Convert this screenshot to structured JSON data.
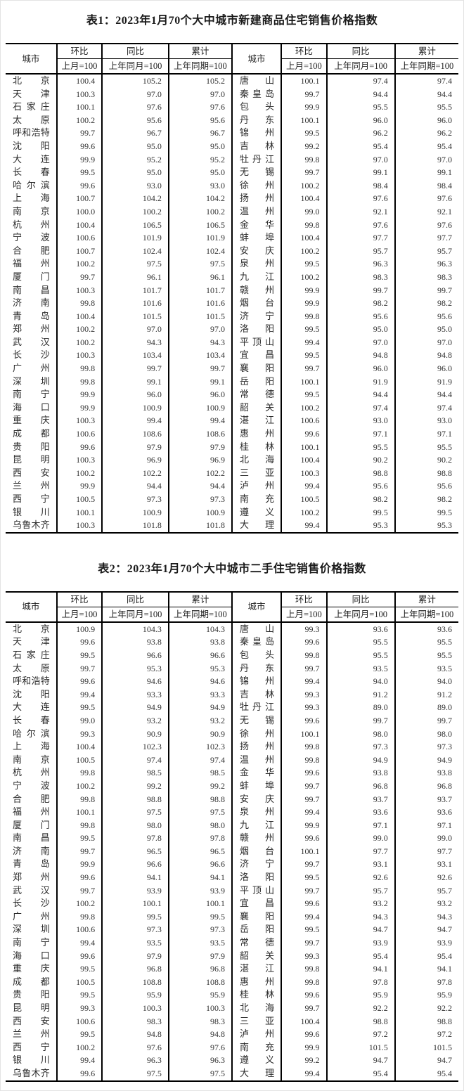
{
  "colors": {
    "table_border": "#000000",
    "text": "#333333",
    "title_text": "#1a1a1a"
  },
  "headers": {
    "city": "城市",
    "mom": "环比",
    "yoy": "同比",
    "cum": "累计",
    "mom_base": "上月=100",
    "yoy_base": "上年同月=100",
    "cum_base": "上年同期=100"
  },
  "tables": [
    {
      "title": "表1：2023年1月70个大中城市新建商品住宅销售价格指数",
      "left": [
        {
          "city": "北京",
          "mom": "100.4",
          "yoy": "105.2",
          "cum": "105.2"
        },
        {
          "city": "天津",
          "mom": "100.3",
          "yoy": "97.0",
          "cum": "97.0"
        },
        {
          "city": "石家庄",
          "mom": "100.1",
          "yoy": "97.6",
          "cum": "97.6"
        },
        {
          "city": "太原",
          "mom": "100.2",
          "yoy": "95.6",
          "cum": "95.6"
        },
        {
          "city": "呼和浩特",
          "mom": "99.7",
          "yoy": "96.7",
          "cum": "96.7"
        },
        {
          "city": "沈阳",
          "mom": "99.6",
          "yoy": "95.0",
          "cum": "95.0"
        },
        {
          "city": "大连",
          "mom": "99.9",
          "yoy": "95.2",
          "cum": "95.2"
        },
        {
          "city": "长春",
          "mom": "99.5",
          "yoy": "95.0",
          "cum": "95.0"
        },
        {
          "city": "哈尔滨",
          "mom": "99.6",
          "yoy": "93.0",
          "cum": "93.0"
        },
        {
          "city": "上海",
          "mom": "100.7",
          "yoy": "104.2",
          "cum": "104.2"
        },
        {
          "city": "南京",
          "mom": "100.0",
          "yoy": "100.2",
          "cum": "100.2"
        },
        {
          "city": "杭州",
          "mom": "100.4",
          "yoy": "106.5",
          "cum": "106.5"
        },
        {
          "city": "宁波",
          "mom": "100.6",
          "yoy": "101.9",
          "cum": "101.9"
        },
        {
          "city": "合肥",
          "mom": "100.7",
          "yoy": "102.4",
          "cum": "102.4"
        },
        {
          "city": "福州",
          "mom": "100.2",
          "yoy": "97.5",
          "cum": "97.5"
        },
        {
          "city": "厦门",
          "mom": "99.7",
          "yoy": "96.1",
          "cum": "96.1"
        },
        {
          "city": "南昌",
          "mom": "100.3",
          "yoy": "101.7",
          "cum": "101.7"
        },
        {
          "city": "济南",
          "mom": "99.8",
          "yoy": "101.6",
          "cum": "101.6"
        },
        {
          "city": "青岛",
          "mom": "100.4",
          "yoy": "101.5",
          "cum": "101.5"
        },
        {
          "city": "郑州",
          "mom": "100.2",
          "yoy": "97.0",
          "cum": "97.0"
        },
        {
          "city": "武汉",
          "mom": "100.2",
          "yoy": "94.3",
          "cum": "94.3"
        },
        {
          "city": "长沙",
          "mom": "100.3",
          "yoy": "103.4",
          "cum": "103.4"
        },
        {
          "city": "广州",
          "mom": "99.8",
          "yoy": "99.7",
          "cum": "99.7"
        },
        {
          "city": "深圳",
          "mom": "99.8",
          "yoy": "99.1",
          "cum": "99.1"
        },
        {
          "city": "南宁",
          "mom": "99.9",
          "yoy": "96.0",
          "cum": "96.0"
        },
        {
          "city": "海口",
          "mom": "99.9",
          "yoy": "100.9",
          "cum": "100.9"
        },
        {
          "city": "重庆",
          "mom": "100.3",
          "yoy": "99.4",
          "cum": "99.4"
        },
        {
          "city": "成都",
          "mom": "100.6",
          "yoy": "108.6",
          "cum": "108.6"
        },
        {
          "city": "贵阳",
          "mom": "99.6",
          "yoy": "97.9",
          "cum": "97.9"
        },
        {
          "city": "昆明",
          "mom": "100.3",
          "yoy": "96.9",
          "cum": "96.9"
        },
        {
          "city": "西安",
          "mom": "100.2",
          "yoy": "102.2",
          "cum": "102.2"
        },
        {
          "city": "兰州",
          "mom": "99.9",
          "yoy": "94.4",
          "cum": "94.4"
        },
        {
          "city": "西宁",
          "mom": "100.5",
          "yoy": "97.3",
          "cum": "97.3"
        },
        {
          "city": "银川",
          "mom": "100.1",
          "yoy": "100.9",
          "cum": "100.9"
        },
        {
          "city": "乌鲁木齐",
          "mom": "100.3",
          "yoy": "101.8",
          "cum": "101.8"
        }
      ],
      "right": [
        {
          "city": "唐山",
          "mom": "100.1",
          "yoy": "97.4",
          "cum": "97.4"
        },
        {
          "city": "秦皇岛",
          "mom": "99.7",
          "yoy": "94.4",
          "cum": "94.4"
        },
        {
          "city": "包头",
          "mom": "99.9",
          "yoy": "95.5",
          "cum": "95.5"
        },
        {
          "city": "丹东",
          "mom": "100.1",
          "yoy": "96.0",
          "cum": "96.0"
        },
        {
          "city": "锦州",
          "mom": "99.5",
          "yoy": "96.2",
          "cum": "96.2"
        },
        {
          "city": "吉林",
          "mom": "99.2",
          "yoy": "95.4",
          "cum": "95.4"
        },
        {
          "city": "牡丹江",
          "mom": "99.8",
          "yoy": "97.0",
          "cum": "97.0"
        },
        {
          "city": "无锡",
          "mom": "99.7",
          "yoy": "99.1",
          "cum": "99.1"
        },
        {
          "city": "徐州",
          "mom": "100.2",
          "yoy": "98.4",
          "cum": "98.4"
        },
        {
          "city": "扬州",
          "mom": "100.4",
          "yoy": "97.6",
          "cum": "97.6"
        },
        {
          "city": "温州",
          "mom": "99.0",
          "yoy": "92.1",
          "cum": "92.1"
        },
        {
          "city": "金华",
          "mom": "99.8",
          "yoy": "97.6",
          "cum": "97.6"
        },
        {
          "city": "蚌埠",
          "mom": "100.4",
          "yoy": "97.7",
          "cum": "97.7"
        },
        {
          "city": "安庆",
          "mom": "100.2",
          "yoy": "95.7",
          "cum": "95.7"
        },
        {
          "city": "泉州",
          "mom": "99.5",
          "yoy": "96.3",
          "cum": "96.3"
        },
        {
          "city": "九江",
          "mom": "100.2",
          "yoy": "98.3",
          "cum": "98.3"
        },
        {
          "city": "赣州",
          "mom": "99.9",
          "yoy": "99.7",
          "cum": "99.7"
        },
        {
          "city": "烟台",
          "mom": "99.9",
          "yoy": "98.2",
          "cum": "98.2"
        },
        {
          "city": "济宁",
          "mom": "99.8",
          "yoy": "95.6",
          "cum": "95.6"
        },
        {
          "city": "洛阳",
          "mom": "99.5",
          "yoy": "95.0",
          "cum": "95.0"
        },
        {
          "city": "平顶山",
          "mom": "99.4",
          "yoy": "97.0",
          "cum": "97.0"
        },
        {
          "city": "宜昌",
          "mom": "99.5",
          "yoy": "94.8",
          "cum": "94.8"
        },
        {
          "city": "襄阳",
          "mom": "99.7",
          "yoy": "96.0",
          "cum": "96.0"
        },
        {
          "city": "岳阳",
          "mom": "100.1",
          "yoy": "91.9",
          "cum": "91.9"
        },
        {
          "city": "常德",
          "mom": "99.5",
          "yoy": "94.4",
          "cum": "94.4"
        },
        {
          "city": "韶关",
          "mom": "100.2",
          "yoy": "97.4",
          "cum": "97.4"
        },
        {
          "city": "湛江",
          "mom": "100.6",
          "yoy": "93.0",
          "cum": "93.0"
        },
        {
          "city": "惠州",
          "mom": "99.6",
          "yoy": "97.1",
          "cum": "97.1"
        },
        {
          "city": "桂林",
          "mom": "100.1",
          "yoy": "95.5",
          "cum": "95.5"
        },
        {
          "city": "北海",
          "mom": "100.4",
          "yoy": "90.2",
          "cum": "90.2"
        },
        {
          "city": "三亚",
          "mom": "100.3",
          "yoy": "98.8",
          "cum": "98.8"
        },
        {
          "city": "泸州",
          "mom": "99.4",
          "yoy": "95.6",
          "cum": "95.6"
        },
        {
          "city": "南充",
          "mom": "100.5",
          "yoy": "98.2",
          "cum": "98.2"
        },
        {
          "city": "遵义",
          "mom": "100.2",
          "yoy": "99.5",
          "cum": "99.5"
        },
        {
          "city": "大理",
          "mom": "99.4",
          "yoy": "95.3",
          "cum": "95.3"
        }
      ]
    },
    {
      "title": "表2：2023年1月70个大中城市二手住宅销售价格指数",
      "left": [
        {
          "city": "北京",
          "mom": "100.9",
          "yoy": "104.3",
          "cum": "104.3"
        },
        {
          "city": "天津",
          "mom": "99.6",
          "yoy": "93.8",
          "cum": "93.8"
        },
        {
          "city": "石家庄",
          "mom": "99.5",
          "yoy": "96.6",
          "cum": "96.6"
        },
        {
          "city": "太原",
          "mom": "99.7",
          "yoy": "95.3",
          "cum": "95.3"
        },
        {
          "city": "呼和浩特",
          "mom": "99.6",
          "yoy": "94.6",
          "cum": "94.6"
        },
        {
          "city": "沈阳",
          "mom": "99.4",
          "yoy": "93.3",
          "cum": "93.3"
        },
        {
          "city": "大连",
          "mom": "99.5",
          "yoy": "94.9",
          "cum": "94.9"
        },
        {
          "city": "长春",
          "mom": "99.0",
          "yoy": "93.2",
          "cum": "93.2"
        },
        {
          "city": "哈尔滨",
          "mom": "99.3",
          "yoy": "90.9",
          "cum": "90.9"
        },
        {
          "city": "上海",
          "mom": "100.4",
          "yoy": "102.3",
          "cum": "102.3"
        },
        {
          "city": "南京",
          "mom": "100.5",
          "yoy": "97.4",
          "cum": "97.4"
        },
        {
          "city": "杭州",
          "mom": "99.8",
          "yoy": "98.5",
          "cum": "98.5"
        },
        {
          "city": "宁波",
          "mom": "100.2",
          "yoy": "99.2",
          "cum": "99.2"
        },
        {
          "city": "合肥",
          "mom": "99.8",
          "yoy": "98.8",
          "cum": "98.8"
        },
        {
          "city": "福州",
          "mom": "100.1",
          "yoy": "97.5",
          "cum": "97.5"
        },
        {
          "city": "厦门",
          "mom": "99.8",
          "yoy": "98.0",
          "cum": "98.0"
        },
        {
          "city": "南昌",
          "mom": "99.5",
          "yoy": "97.8",
          "cum": "97.8"
        },
        {
          "city": "济南",
          "mom": "99.7",
          "yoy": "96.5",
          "cum": "96.5"
        },
        {
          "city": "青岛",
          "mom": "99.9",
          "yoy": "96.6",
          "cum": "96.6"
        },
        {
          "city": "郑州",
          "mom": "99.6",
          "yoy": "94.1",
          "cum": "94.1"
        },
        {
          "city": "武汉",
          "mom": "99.7",
          "yoy": "93.9",
          "cum": "93.9"
        },
        {
          "city": "长沙",
          "mom": "100.2",
          "yoy": "100.1",
          "cum": "100.1"
        },
        {
          "city": "广州",
          "mom": "99.8",
          "yoy": "99.5",
          "cum": "99.5"
        },
        {
          "city": "深圳",
          "mom": "100.6",
          "yoy": "97.3",
          "cum": "97.3"
        },
        {
          "city": "南宁",
          "mom": "99.4",
          "yoy": "93.5",
          "cum": "93.5"
        },
        {
          "city": "海口",
          "mom": "99.6",
          "yoy": "97.9",
          "cum": "97.9"
        },
        {
          "city": "重庆",
          "mom": "99.5",
          "yoy": "96.8",
          "cum": "96.8"
        },
        {
          "city": "成都",
          "mom": "100.5",
          "yoy": "108.8",
          "cum": "108.8"
        },
        {
          "city": "贵阳",
          "mom": "99.5",
          "yoy": "95.9",
          "cum": "95.9"
        },
        {
          "city": "昆明",
          "mom": "99.3",
          "yoy": "100.3",
          "cum": "100.3"
        },
        {
          "city": "西安",
          "mom": "100.6",
          "yoy": "98.3",
          "cum": "98.3"
        },
        {
          "city": "兰州",
          "mom": "99.5",
          "yoy": "94.8",
          "cum": "94.8"
        },
        {
          "city": "西宁",
          "mom": "100.2",
          "yoy": "97.6",
          "cum": "97.6"
        },
        {
          "city": "银川",
          "mom": "99.4",
          "yoy": "96.3",
          "cum": "96.3"
        },
        {
          "city": "乌鲁木齐",
          "mom": "99.6",
          "yoy": "97.5",
          "cum": "97.5"
        }
      ],
      "right": [
        {
          "city": "唐山",
          "mom": "99.3",
          "yoy": "93.6",
          "cum": "93.6"
        },
        {
          "city": "秦皇岛",
          "mom": "99.6",
          "yoy": "95.5",
          "cum": "95.5"
        },
        {
          "city": "包头",
          "mom": "99.8",
          "yoy": "95.5",
          "cum": "95.5"
        },
        {
          "city": "丹东",
          "mom": "99.7",
          "yoy": "93.5",
          "cum": "93.5"
        },
        {
          "city": "锦州",
          "mom": "99.4",
          "yoy": "94.0",
          "cum": "94.0"
        },
        {
          "city": "吉林",
          "mom": "99.3",
          "yoy": "91.2",
          "cum": "91.2"
        },
        {
          "city": "牡丹江",
          "mom": "99.3",
          "yoy": "89.0",
          "cum": "89.0"
        },
        {
          "city": "无锡",
          "mom": "99.6",
          "yoy": "99.7",
          "cum": "99.7"
        },
        {
          "city": "徐州",
          "mom": "100.1",
          "yoy": "98.0",
          "cum": "98.0"
        },
        {
          "city": "扬州",
          "mom": "99.8",
          "yoy": "97.3",
          "cum": "97.3"
        },
        {
          "city": "温州",
          "mom": "99.8",
          "yoy": "94.9",
          "cum": "94.9"
        },
        {
          "city": "金华",
          "mom": "99.6",
          "yoy": "93.8",
          "cum": "93.8"
        },
        {
          "city": "蚌埠",
          "mom": "99.7",
          "yoy": "96.8",
          "cum": "96.8"
        },
        {
          "city": "安庆",
          "mom": "99.7",
          "yoy": "93.7",
          "cum": "93.7"
        },
        {
          "city": "泉州",
          "mom": "99.4",
          "yoy": "93.6",
          "cum": "93.6"
        },
        {
          "city": "九江",
          "mom": "99.9",
          "yoy": "97.1",
          "cum": "97.1"
        },
        {
          "city": "赣州",
          "mom": "99.6",
          "yoy": "99.0",
          "cum": "99.0"
        },
        {
          "city": "烟台",
          "mom": "100.1",
          "yoy": "97.7",
          "cum": "97.7"
        },
        {
          "city": "济宁",
          "mom": "99.7",
          "yoy": "93.1",
          "cum": "93.1"
        },
        {
          "city": "洛阳",
          "mom": "99.5",
          "yoy": "92.6",
          "cum": "92.6"
        },
        {
          "city": "平顶山",
          "mom": "99.7",
          "yoy": "95.7",
          "cum": "95.7"
        },
        {
          "city": "宜昌",
          "mom": "99.6",
          "yoy": "93.2",
          "cum": "93.2"
        },
        {
          "city": "襄阳",
          "mom": "99.4",
          "yoy": "94.3",
          "cum": "94.3"
        },
        {
          "city": "岳阳",
          "mom": "99.5",
          "yoy": "94.7",
          "cum": "94.7"
        },
        {
          "city": "常德",
          "mom": "99.7",
          "yoy": "93.9",
          "cum": "93.9"
        },
        {
          "city": "韶关",
          "mom": "99.3",
          "yoy": "95.4",
          "cum": "95.4"
        },
        {
          "city": "湛江",
          "mom": "99.8",
          "yoy": "94.1",
          "cum": "94.1"
        },
        {
          "city": "惠州",
          "mom": "99.8",
          "yoy": "97.8",
          "cum": "97.8"
        },
        {
          "city": "桂林",
          "mom": "99.6",
          "yoy": "95.9",
          "cum": "95.9"
        },
        {
          "city": "北海",
          "mom": "99.7",
          "yoy": "92.2",
          "cum": "92.2"
        },
        {
          "city": "三亚",
          "mom": "100.4",
          "yoy": "98.8",
          "cum": "98.8"
        },
        {
          "city": "泸州",
          "mom": "99.6",
          "yoy": "97.2",
          "cum": "97.2"
        },
        {
          "city": "南充",
          "mom": "99.9",
          "yoy": "101.5",
          "cum": "101.5"
        },
        {
          "city": "遵义",
          "mom": "99.2",
          "yoy": "94.7",
          "cum": "94.7"
        },
        {
          "city": "大理",
          "mom": "99.4",
          "yoy": "95.4",
          "cum": "95.4"
        }
      ]
    }
  ]
}
